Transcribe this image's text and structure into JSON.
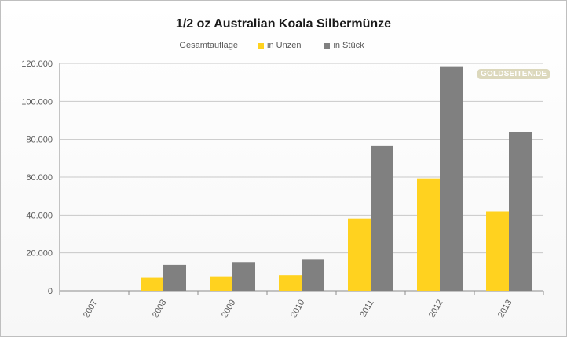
{
  "chart_data": {
    "type": "bar",
    "title": "1/2 oz Australian Koala Silbermünze",
    "legend_title": "Gesamtauflage",
    "legend_position": "top-center",
    "categories": [
      "2007",
      "2008",
      "2009",
      "2010",
      "2011",
      "2012",
      "2013"
    ],
    "series": [
      {
        "name": "in Unzen",
        "color": "#ffd21f",
        "values": [
          0,
          6800,
          7600,
          8200,
          38200,
          59300,
          42000
        ]
      },
      {
        "name": "in Stück",
        "color": "#808080",
        "values": [
          0,
          13700,
          15200,
          16400,
          76600,
          118500,
          84000
        ]
      }
    ],
    "ylim": [
      0,
      120000
    ],
    "yticks": [
      "0",
      "20.000",
      "40.000",
      "60.000",
      "80.000",
      "100.000",
      "120.000"
    ],
    "ytick_values": [
      0,
      20000,
      40000,
      60000,
      80000,
      100000,
      120000
    ],
    "grid": true,
    "watermark": "GOLDSEITEN.DE"
  }
}
